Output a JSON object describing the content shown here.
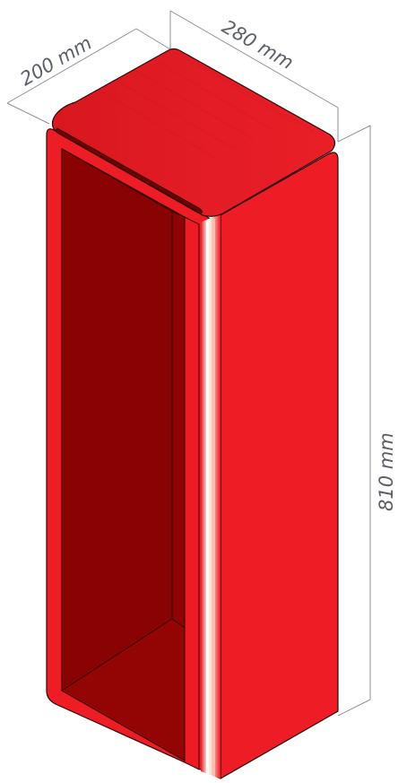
{
  "dimensions": {
    "depth_label": "200 mm",
    "width_label": "280 mm",
    "height_label": "810 mm"
  },
  "colors": {
    "body_red": "#ee1c25",
    "top_red": "#e41b23",
    "interior_red": "#8e0303",
    "dimension_gray": "#5a5f66",
    "highlight": "#ffd7c8"
  },
  "object": "open-front-cabinet"
}
